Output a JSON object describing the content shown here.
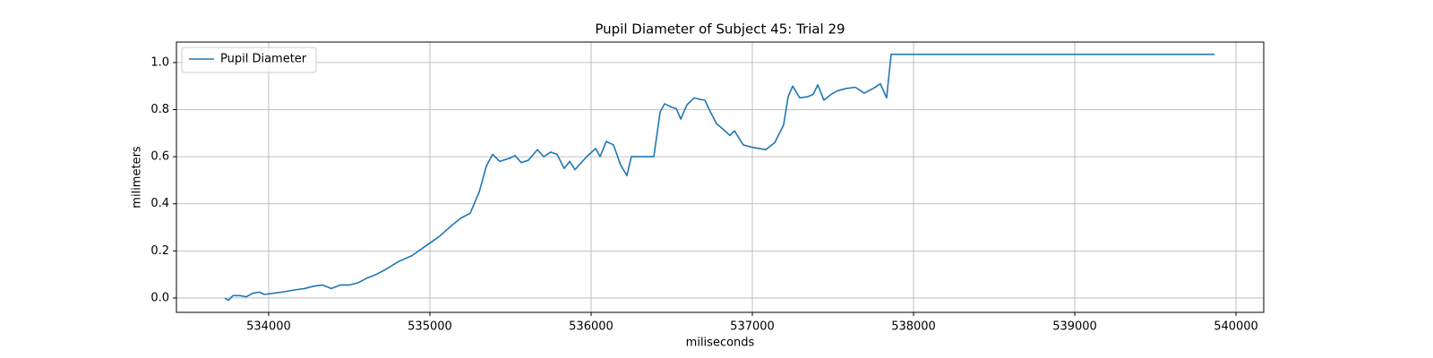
{
  "chart_data": {
    "type": "line",
    "title": "Pupil Diameter of Subject 45: Trial 29",
    "xlabel": "miliseconds",
    "ylabel": "milimeters",
    "x": [
      533728,
      533750,
      533778,
      533822,
      533861,
      533900,
      533944,
      533972,
      534028,
      534083,
      534167,
      534222,
      534278,
      534333,
      534389,
      534444,
      534500,
      534556,
      534611,
      534667,
      534722,
      534806,
      534889,
      534972,
      535056,
      535139,
      535194,
      535250,
      535306,
      535350,
      535389,
      535433,
      535500,
      535528,
      535567,
      535611,
      535667,
      535706,
      535750,
      535789,
      535833,
      535867,
      535900,
      535972,
      536028,
      536056,
      536094,
      536139,
      536183,
      536222,
      536250,
      536389,
      536428,
      536456,
      536500,
      536528,
      536556,
      536594,
      536639,
      536667,
      536706,
      536733,
      536778,
      536822,
      536861,
      536889,
      536944,
      537000,
      537083,
      537139,
      537194,
      537222,
      537250,
      537294,
      537344,
      537378,
      537406,
      537444,
      537489,
      537528,
      537583,
      537639,
      537694,
      537750,
      537794,
      537833,
      537861,
      539867
    ],
    "series": [
      {
        "name": "Pupil Diameter",
        "color": "#1f77b4",
        "values": [
          0.0,
          -0.01,
          0.01,
          0.01,
          0.005,
          0.02,
          0.025,
          0.015,
          0.02,
          0.025,
          0.035,
          0.04,
          0.05,
          0.055,
          0.04,
          0.055,
          0.055,
          0.065,
          0.085,
          0.1,
          0.12,
          0.155,
          0.18,
          0.22,
          0.26,
          0.31,
          0.34,
          0.36,
          0.45,
          0.56,
          0.61,
          0.58,
          0.595,
          0.605,
          0.575,
          0.585,
          0.63,
          0.6,
          0.62,
          0.61,
          0.55,
          0.58,
          0.545,
          0.6,
          0.635,
          0.6,
          0.665,
          0.65,
          0.565,
          0.52,
          0.6,
          0.6,
          0.79,
          0.825,
          0.81,
          0.805,
          0.76,
          0.82,
          0.85,
          0.845,
          0.84,
          0.8,
          0.74,
          0.715,
          0.69,
          0.71,
          0.65,
          0.64,
          0.63,
          0.66,
          0.735,
          0.855,
          0.9,
          0.85,
          0.855,
          0.865,
          0.905,
          0.84,
          0.865,
          0.88,
          0.89,
          0.895,
          0.87,
          0.89,
          0.91,
          0.85,
          1.035,
          1.035
        ]
      }
    ],
    "xlim": [
      533428,
      540172
    ],
    "xticks": [
      534000,
      535000,
      536000,
      537000,
      538000,
      539000,
      540000
    ],
    "ylim": [
      -0.061,
      1.087
    ],
    "yticks": [
      {
        "value": 0,
        "label": "0.0"
      },
      0.2,
      0.4,
      0.6,
      0.8,
      {
        "value": 1,
        "label": "1.0"
      }
    ],
    "grid": true,
    "legend": "upper left"
  }
}
